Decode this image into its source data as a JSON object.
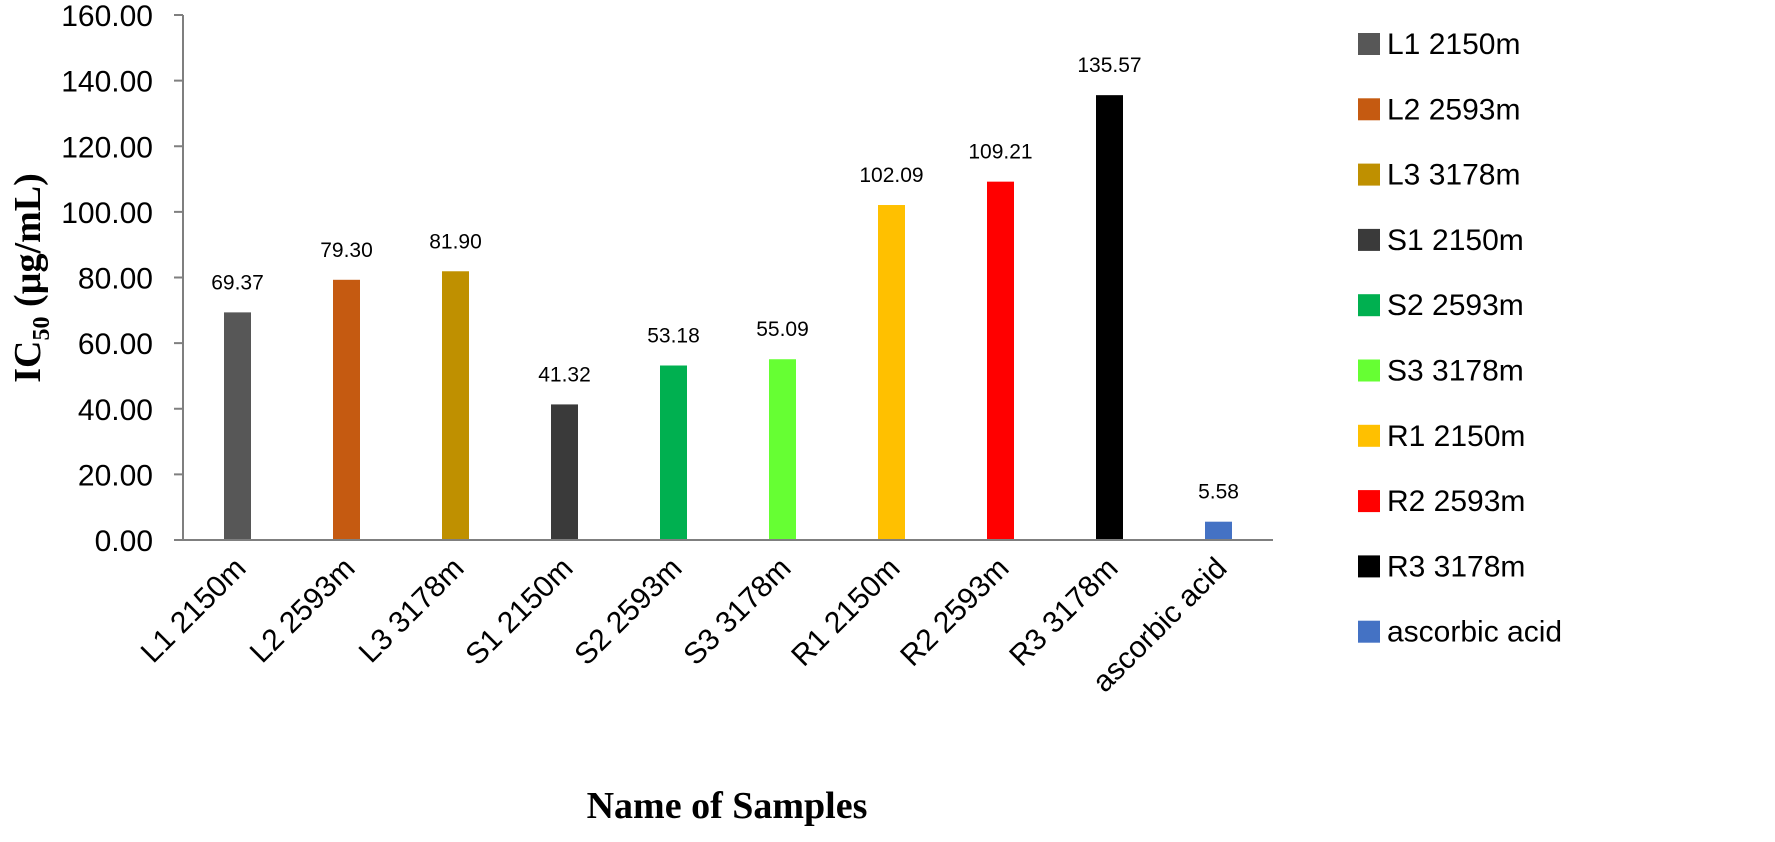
{
  "chart_data": {
    "type": "bar",
    "categories": [
      "L1 2150m",
      "L2 2593m",
      "L3 3178m",
      "S1 2150m",
      "S2 2593m",
      "S3 3178m",
      "R1 2150m",
      "R2 2593m",
      "R3 3178m",
      "ascorbic acid"
    ],
    "values": [
      69.37,
      79.3,
      81.9,
      41.32,
      53.18,
      55.09,
      102.09,
      109.21,
      135.57,
      5.58
    ],
    "value_labels": [
      "69.37",
      "79.30",
      "81.90",
      "41.32",
      "53.18",
      "55.09",
      "102.09",
      "109.21",
      "135.57",
      "5.58"
    ],
    "colors": [
      "#575757",
      "#c55a11",
      "#bf9000",
      "#3a3a3a",
      "#00b050",
      "#66ff33",
      "#ffc000",
      "#ff0000",
      "#000000",
      "#4472c4"
    ],
    "legend": [
      "L1 2150m",
      "L2 2593m",
      "L3 3178m",
      "S1 2150m",
      "S2 2593m",
      "S3 3178m",
      "R1 2150m",
      "R2 2593m",
      "R3 3178m",
      "ascorbic acid"
    ],
    "legend_placement": "right",
    "title": "",
    "xlabel": "Name of Samples",
    "ylabel_main": "IC",
    "ylabel_sub": "50",
    "ylabel_unit": " (µg/mL)",
    "ylim": [
      0,
      160
    ],
    "yticks": [
      "0.00",
      "20.00",
      "40.00",
      "60.00",
      "80.00",
      "100.00",
      "120.00",
      "140.00",
      "160.00"
    ],
    "grid": false
  }
}
